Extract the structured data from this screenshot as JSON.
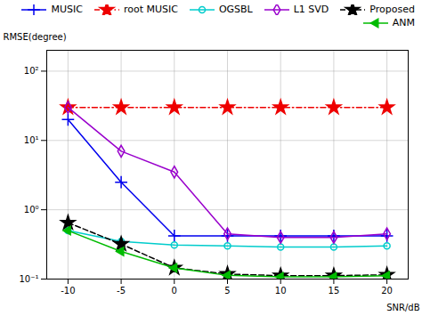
{
  "chart_data": {
    "type": "line",
    "x": [
      -10,
      -5,
      0,
      5,
      10,
      15,
      20
    ],
    "series": [
      {
        "name": "MUSIC",
        "color": "#0000EE",
        "values": [
          20.0,
          2.5,
          0.42,
          0.42,
          0.42,
          0.42,
          0.42
        ],
        "marker": "plus",
        "line_style": "solid"
      },
      {
        "name": "root MUSIC",
        "color": "#EE0000",
        "values": [
          30.0,
          30.0,
          30.0,
          30.0,
          30.0,
          30.0,
          30.0
        ],
        "marker": "star",
        "line_style": "dashdot"
      },
      {
        "name": "OGSBL",
        "color": "#00CCCC",
        "values": [
          0.5,
          0.35,
          0.31,
          0.3,
          0.29,
          0.29,
          0.3
        ],
        "marker": "circle",
        "line_style": "solid"
      },
      {
        "name": "L1 SVD",
        "color": "#9900CC",
        "values": [
          30.0,
          7.0,
          3.5,
          0.45,
          0.4,
          0.4,
          0.45
        ],
        "marker": "diamond",
        "line_style": "solid"
      },
      {
        "name": "Proposed",
        "color": "#000000",
        "values": [
          0.65,
          0.32,
          0.145,
          0.118,
          0.112,
          0.112,
          0.115
        ],
        "marker": "star",
        "line_style": "dashed"
      },
      {
        "name": "ANM",
        "color": "#00BB00",
        "values": [
          0.5,
          0.25,
          0.145,
          0.113,
          0.108,
          0.108,
          0.112
        ],
        "marker": "triangle-left",
        "line_style": "solid"
      }
    ],
    "xlabel": "SNR/dB",
    "ylabel": "RMSE(degree)",
    "xlim": [
      -12,
      22
    ],
    "xticks": [
      -10,
      -5,
      0,
      5,
      10,
      15,
      20
    ],
    "ylim": [
      0.1,
      200
    ],
    "yticks": [
      {
        "value": 0.1,
        "label": "10⁻¹"
      },
      {
        "value": 1.0,
        "label": "10⁰"
      },
      {
        "value": 10.0,
        "label": "10¹"
      },
      {
        "value": 100.0,
        "label": "10²"
      }
    ],
    "log": "y",
    "grid": true,
    "legend": "upper right"
  }
}
